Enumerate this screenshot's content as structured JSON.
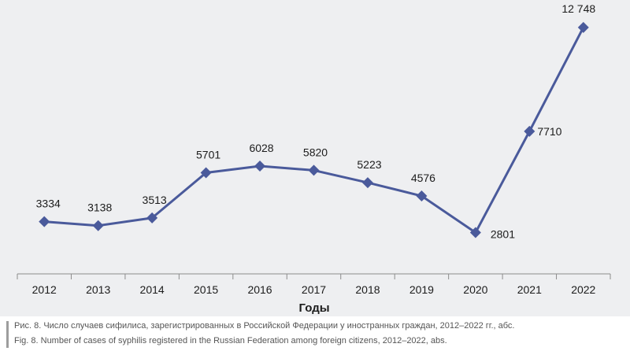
{
  "chart_data": {
    "type": "line",
    "title": "",
    "xlabel": "Годы",
    "ylabel": "",
    "categories": [
      "2012",
      "2013",
      "2014",
      "2015",
      "2016",
      "2017",
      "2018",
      "2019",
      "2020",
      "2021",
      "2022"
    ],
    "series": [
      {
        "values": [
          3334,
          3138,
          3513,
          5701,
          6028,
          5820,
          5223,
          4576,
          2801,
          7710,
          12748
        ],
        "color": "#4a5a9b"
      }
    ],
    "data_labels": [
      "3334",
      "3138",
      "3513",
      "5701",
      "6028",
      "5820",
      "5223",
      "4576",
      "2801",
      "7710",
      "12 748"
    ],
    "ylim": [
      800,
      14000
    ],
    "grid": false
  },
  "caption": {
    "ru": "Рис. 8. Число случаев сифилиса, зарегистрированных в Российской Федерации у иностранных граждан, 2012–2022 гг., абс.",
    "en": "Fig. 8. Number of cases of syphilis registered in the Russian Federation among foreign citizens, 2012–2022, abs."
  }
}
